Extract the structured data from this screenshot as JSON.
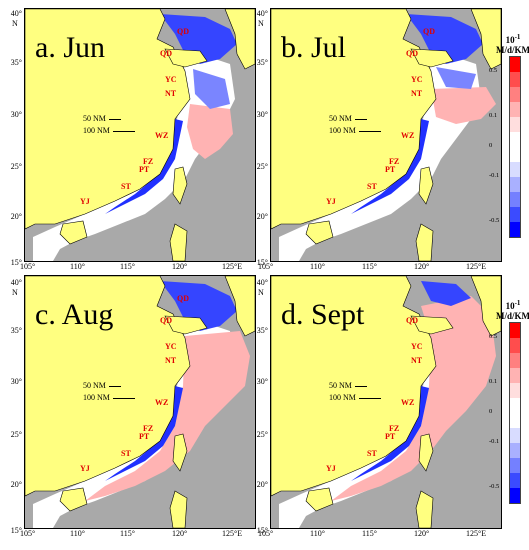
{
  "panels": [
    {
      "id": "jun",
      "title": "a. Jun",
      "has_colorbar": true
    },
    {
      "id": "jul",
      "title": "b. Jul",
      "has_colorbar": true
    },
    {
      "id": "aug",
      "title": "c. Aug",
      "has_colorbar": false
    },
    {
      "id": "sept",
      "title": "d. Sept",
      "has_colorbar": true
    }
  ],
  "scale": {
    "short": "50 NM",
    "long": "100 NM"
  },
  "cities": [
    "QD",
    "YC",
    "NT",
    "WZ",
    "FZ",
    "PT",
    "ST",
    "YJ"
  ],
  "axis": {
    "lat_ticks": [
      "15°",
      "20°",
      "25°",
      "30°",
      "35°",
      "40°"
    ],
    "north_label": "N",
    "lon_ticks": [
      "105°",
      "110°",
      "115°",
      "120°",
      "125°E"
    ]
  },
  "colorbar": {
    "title_line1": "10",
    "title_exp": "-1",
    "title_line2": "M/d/KM",
    "tick_labels": [
      "0.5",
      "0.1",
      "0",
      "-0.1",
      "-0.5"
    ],
    "colors": [
      "#ff0000",
      "#ff4d4d",
      "#ff8080",
      "#ffb3b3",
      "#ffdede",
      "#ffffff",
      "#ffffff",
      "#d8dcff",
      "#a9b0ff",
      "#7480ff",
      "#3b4bff",
      "#0000ff"
    ]
  },
  "colors": {
    "land": "#ffff80",
    "sea": "#a9a9a9",
    "positive": "#ffb3b3",
    "negative": "#2030ff",
    "near_zero": "#ffffff",
    "city_label": "#e00000"
  }
}
